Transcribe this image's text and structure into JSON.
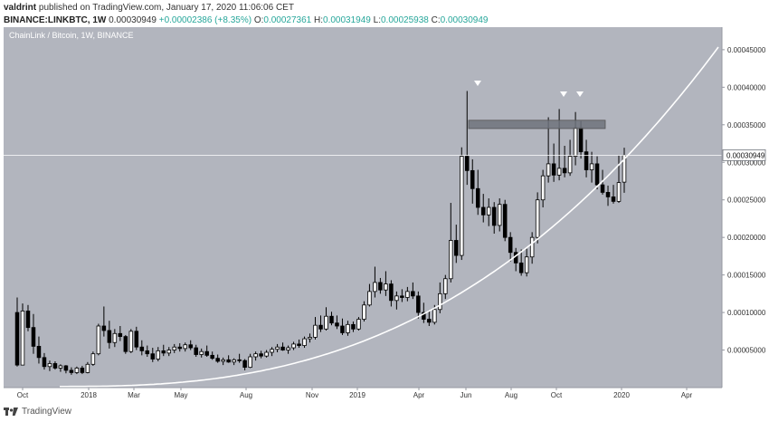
{
  "header": {
    "author": "valdrint",
    "published": "published on TradingView.com, January 17, 2020 11:06:06 CET",
    "symbol": "BINANCE:LINKBTC, 1W",
    "price": "0.00030949",
    "change": "+0.00002386 (+8.35%)",
    "o_label": "O:",
    "o": "0.00027361",
    "h_label": "H:",
    "h": "0.00031949",
    "l_label": "L:",
    "l": "0.00025938",
    "c_label": "C:",
    "c": "0.00030949"
  },
  "footer": {
    "brand": "TradingView"
  },
  "colors": {
    "plot_bg": "#b2b5be",
    "candle_up": "#ffffff",
    "candle_down": "#000000",
    "curve": "#ffffff",
    "resistance_box": "#6f737c",
    "price_line": "#ffffff"
  },
  "chart_data": {
    "type": "candlestick",
    "title": "ChainLink / Bitcoin, 1W, BINANCE",
    "x_ticks": [
      "Oct",
      "2018",
      "Mar",
      "May",
      "Aug",
      "Nov",
      "2019",
      "Apr",
      "Jun",
      "Aug",
      "Oct",
      "2020",
      "Apr"
    ],
    "y_ticks": [
      "0.00005000",
      "0.00010000",
      "0.00015000",
      "0.00020000",
      "0.00025000",
      "0.00030000",
      "0.00035000",
      "0.00040000",
      "0.00045000"
    ],
    "ylim": [
      0.0,
      0.00048
    ],
    "current_price": "0.00030949",
    "resistance_zone": [
      0.000345,
      0.000356
    ],
    "peak_markers": 3,
    "support_curve": "parabolic",
    "candles": [
      {
        "o": 0.0001,
        "h": 0.00012,
        "l": 2.8e-05,
        "c": 3e-05
      },
      {
        "o": 3e-05,
        "h": 0.000112,
        "l": 3e-05,
        "c": 0.000102
      },
      {
        "o": 0.000102,
        "h": 0.00011,
        "l": 7.5e-05,
        "c": 8e-05
      },
      {
        "o": 8e-05,
        "h": 9.8e-05,
        "l": 4.5e-05,
        "c": 5.5e-05
      },
      {
        "o": 5.5e-05,
        "h": 6.8e-05,
        "l": 3.2e-05,
        "c": 4e-05
      },
      {
        "o": 4e-05,
        "h": 4.6e-05,
        "l": 2.4e-05,
        "c": 2.8e-05
      },
      {
        "o": 2.8e-05,
        "h": 3.6e-05,
        "l": 2.2e-05,
        "c": 3.2e-05
      },
      {
        "o": 3.2e-05,
        "h": 3.5e-05,
        "l": 2.4e-05,
        "c": 2.6e-05
      },
      {
        "o": 2.6e-05,
        "h": 3.1e-05,
        "l": 2.1e-05,
        "c": 2.9e-05
      },
      {
        "o": 2.9e-05,
        "h": 3e-05,
        "l": 1.9e-05,
        "c": 2.3e-05
      },
      {
        "o": 2.3e-05,
        "h": 2.7e-05,
        "l": 1.7e-05,
        "c": 2e-05
      },
      {
        "o": 2e-05,
        "h": 2.8e-05,
        "l": 1.8e-05,
        "c": 2.6e-05
      },
      {
        "o": 2.6e-05,
        "h": 2.9e-05,
        "l": 1.8e-05,
        "c": 2e-05
      },
      {
        "o": 2e-05,
        "h": 3.4e-05,
        "l": 1.9e-05,
        "c": 3.1e-05
      },
      {
        "o": 3.1e-05,
        "h": 4.8e-05,
        "l": 2.9e-05,
        "c": 4.5e-05
      },
      {
        "o": 4.5e-05,
        "h": 8.5e-05,
        "l": 4.3e-05,
        "c": 8.2e-05
      },
      {
        "o": 8.2e-05,
        "h": 0.000108,
        "l": 6.8e-05,
        "c": 7.6e-05
      },
      {
        "o": 7.6e-05,
        "h": 8.9e-05,
        "l": 5.2e-05,
        "c": 6e-05
      },
      {
        "o": 6e-05,
        "h": 7.8e-05,
        "l": 5.4e-05,
        "c": 7.2e-05
      },
      {
        "o": 7.2e-05,
        "h": 8.2e-05,
        "l": 6.2e-05,
        "c": 6.8e-05
      },
      {
        "o": 6.8e-05,
        "h": 7e-05,
        "l": 4.5e-05,
        "c": 4.8e-05
      },
      {
        "o": 4.8e-05,
        "h": 7.8e-05,
        "l": 4.6e-05,
        "c": 7.5e-05
      },
      {
        "o": 7.5e-05,
        "h": 8.1e-05,
        "l": 5e-05,
        "c": 5.4e-05
      },
      {
        "o": 5.4e-05,
        "h": 6.3e-05,
        "l": 4.3e-05,
        "c": 4.9e-05
      },
      {
        "o": 4.9e-05,
        "h": 5.6e-05,
        "l": 4.1e-05,
        "c": 4.5e-05
      },
      {
        "o": 4.5e-05,
        "h": 5.3e-05,
        "l": 3.4e-05,
        "c": 3.8e-05
      },
      {
        "o": 3.8e-05,
        "h": 5.4e-05,
        "l": 3.5e-05,
        "c": 4.9e-05
      },
      {
        "o": 4.9e-05,
        "h": 5.7e-05,
        "l": 4.2e-05,
        "c": 4.6e-05
      },
      {
        "o": 4.6e-05,
        "h": 5.4e-05,
        "l": 4.2e-05,
        "c": 5e-05
      },
      {
        "o": 5e-05,
        "h": 5.8e-05,
        "l": 4.6e-05,
        "c": 5.4e-05
      },
      {
        "o": 5.4e-05,
        "h": 5.9e-05,
        "l": 4.8e-05,
        "c": 5.2e-05
      },
      {
        "o": 5.2e-05,
        "h": 6e-05,
        "l": 4.8e-05,
        "c": 5.7e-05
      },
      {
        "o": 5.7e-05,
        "h": 6.3e-05,
        "l": 5e-05,
        "c": 5.3e-05
      },
      {
        "o": 5.3e-05,
        "h": 5.7e-05,
        "l": 4.1e-05,
        "c": 4.4e-05
      },
      {
        "o": 4.4e-05,
        "h": 5.2e-05,
        "l": 4e-05,
        "c": 4.8e-05
      },
      {
        "o": 4.8e-05,
        "h": 5.6e-05,
        "l": 4.1e-05,
        "c": 4.3e-05
      },
      {
        "o": 4.3e-05,
        "h": 4.8e-05,
        "l": 3.7e-05,
        "c": 3.9e-05
      },
      {
        "o": 3.9e-05,
        "h": 4.4e-05,
        "l": 3.3e-05,
        "c": 3.5e-05
      },
      {
        "o": 3.5e-05,
        "h": 4e-05,
        "l": 3e-05,
        "c": 3.7e-05
      },
      {
        "o": 3.7e-05,
        "h": 4.3e-05,
        "l": 3.3e-05,
        "c": 3.4e-05
      },
      {
        "o": 3.4e-05,
        "h": 3.9e-05,
        "l": 3e-05,
        "c": 3.7e-05
      },
      {
        "o": 3.7e-05,
        "h": 4.5e-05,
        "l": 3.3e-05,
        "c": 3.6e-05
      },
      {
        "o": 3.6e-05,
        "h": 3.8e-05,
        "l": 2.3e-05,
        "c": 2.7e-05
      },
      {
        "o": 2.7e-05,
        "h": 4.5e-05,
        "l": 2.6e-05,
        "c": 4.1e-05
      },
      {
        "o": 4.1e-05,
        "h": 4.8e-05,
        "l": 3.6e-05,
        "c": 4.5e-05
      },
      {
        "o": 4.5e-05,
        "h": 4.9e-05,
        "l": 3.9e-05,
        "c": 4.2e-05
      },
      {
        "o": 4.2e-05,
        "h": 5e-05,
        "l": 4e-05,
        "c": 4.7e-05
      },
      {
        "o": 4.7e-05,
        "h": 5.4e-05,
        "l": 4.2e-05,
        "c": 5.1e-05
      },
      {
        "o": 5.1e-05,
        "h": 5.8e-05,
        "l": 4.7e-05,
        "c": 5.4e-05
      },
      {
        "o": 5.4e-05,
        "h": 6e-05,
        "l": 4.9e-05,
        "c": 5e-05
      },
      {
        "o": 5e-05,
        "h": 5.6e-05,
        "l": 4.5e-05,
        "c": 5.3e-05
      },
      {
        "o": 5.3e-05,
        "h": 6.1e-05,
        "l": 5e-05,
        "c": 5.8e-05
      },
      {
        "o": 5.8e-05,
        "h": 6.4e-05,
        "l": 5.3e-05,
        "c": 5.6e-05
      },
      {
        "o": 5.6e-05,
        "h": 6.8e-05,
        "l": 5.3e-05,
        "c": 6.5e-05
      },
      {
        "o": 6.5e-05,
        "h": 7.2e-05,
        "l": 6e-05,
        "c": 6.7e-05
      },
      {
        "o": 6.7e-05,
        "h": 9.4e-05,
        "l": 6.4e-05,
        "c": 8.3e-05
      },
      {
        "o": 8.3e-05,
        "h": 9.6e-05,
        "l": 7.4e-05,
        "c": 7.8e-05
      },
      {
        "o": 7.8e-05,
        "h": 0.000107,
        "l": 7.6e-05,
        "c": 9.5e-05
      },
      {
        "o": 9.5e-05,
        "h": 0.000101,
        "l": 8.3e-05,
        "c": 8.6e-05
      },
      {
        "o": 8.6e-05,
        "h": 9.6e-05,
        "l": 7.8e-05,
        "c": 8.2e-05
      },
      {
        "o": 8.2e-05,
        "h": 9.2e-05,
        "l": 7e-05,
        "c": 7.3e-05
      },
      {
        "o": 7.3e-05,
        "h": 8.9e-05,
        "l": 6.9e-05,
        "c": 8.4e-05
      },
      {
        "o": 8.4e-05,
        "h": 8.8e-05,
        "l": 7.4e-05,
        "c": 7.8e-05
      },
      {
        "o": 7.8e-05,
        "h": 9.4e-05,
        "l": 7.6e-05,
        "c": 9.1e-05
      },
      {
        "o": 9.1e-05,
        "h": 0.000115,
        "l": 8.8e-05,
        "c": 0.00011
      },
      {
        "o": 0.00011,
        "h": 0.000138,
        "l": 0.000108,
        "c": 0.000128
      },
      {
        "o": 0.000128,
        "h": 0.000161,
        "l": 0.00012,
        "c": 0.00014
      },
      {
        "o": 0.00014,
        "h": 0.000146,
        "l": 0.000125,
        "c": 0.00013
      },
      {
        "o": 0.00013,
        "h": 0.000155,
        "l": 0.000122,
        "c": 0.000138
      },
      {
        "o": 0.000138,
        "h": 0.000143,
        "l": 0.000108,
        "c": 0.000116
      },
      {
        "o": 0.000116,
        "h": 0.000128,
        "l": 0.000104,
        "c": 0.000122
      },
      {
        "o": 0.000122,
        "h": 0.000131,
        "l": 0.000114,
        "c": 0.00012
      },
      {
        "o": 0.00012,
        "h": 0.000134,
        "l": 0.000115,
        "c": 0.000128
      },
      {
        "o": 0.000128,
        "h": 0.00014,
        "l": 0.000118,
        "c": 0.000122
      },
      {
        "o": 0.000122,
        "h": 0.000128,
        "l": 9.2e-05,
        "c": 0.0001
      },
      {
        "o": 0.0001,
        "h": 0.000113,
        "l": 8.6e-05,
        "c": 9.1e-05
      },
      {
        "o": 9.1e-05,
        "h": 0.000103,
        "l": 8.2e-05,
        "c": 8.7e-05
      },
      {
        "o": 8.7e-05,
        "h": 0.00011,
        "l": 8.4e-05,
        "c": 0.000104
      },
      {
        "o": 0.000104,
        "h": 0.00014,
        "l": 9.9e-05,
        "c": 0.000125
      },
      {
        "o": 0.000125,
        "h": 0.00015,
        "l": 0.000118,
        "c": 0.000145
      },
      {
        "o": 0.000145,
        "h": 0.000246,
        "l": 0.00014,
        "c": 0.000196
      },
      {
        "o": 0.000196,
        "h": 0.000217,
        "l": 0.000166,
        "c": 0.000176
      },
      {
        "o": 0.000176,
        "h": 0.00032,
        "l": 0.00017,
        "c": 0.000308
      },
      {
        "o": 0.000308,
        "h": 0.000395,
        "l": 0.00027,
        "c": 0.000289
      },
      {
        "o": 0.000289,
        "h": 0.000304,
        "l": 0.000245,
        "c": 0.000265
      },
      {
        "o": 0.000265,
        "h": 0.00029,
        "l": 0.00023,
        "c": 0.00024
      },
      {
        "o": 0.00024,
        "h": 0.000258,
        "l": 0.00022,
        "c": 0.00023
      },
      {
        "o": 0.00023,
        "h": 0.000252,
        "l": 0.000215,
        "c": 0.00024
      },
      {
        "o": 0.00024,
        "h": 0.000247,
        "l": 0.000205,
        "c": 0.000216
      },
      {
        "o": 0.000216,
        "h": 0.000252,
        "l": 0.000208,
        "c": 0.000244
      },
      {
        "o": 0.000244,
        "h": 0.00025,
        "l": 0.000195,
        "c": 0.0002
      },
      {
        "o": 0.0002,
        "h": 0.000207,
        "l": 0.000168,
        "c": 0.00018
      },
      {
        "o": 0.00018,
        "h": 0.000186,
        "l": 0.000155,
        "c": 0.000166
      },
      {
        "o": 0.000166,
        "h": 0.000184,
        "l": 0.000149,
        "c": 0.000153
      },
      {
        "o": 0.000153,
        "h": 0.000185,
        "l": 0.000148,
        "c": 0.000174
      },
      {
        "o": 0.000174,
        "h": 0.000207,
        "l": 0.000165,
        "c": 0.0002
      },
      {
        "o": 0.0002,
        "h": 0.00026,
        "l": 0.000192,
        "c": 0.00025
      },
      {
        "o": 0.00025,
        "h": 0.00029,
        "l": 0.00024,
        "c": 0.000282
      },
      {
        "o": 0.000282,
        "h": 0.00036,
        "l": 0.000273,
        "c": 0.000298
      },
      {
        "o": 0.000298,
        "h": 0.000325,
        "l": 0.000274,
        "c": 0.000283
      },
      {
        "o": 0.000283,
        "h": 0.000371,
        "l": 0.000276,
        "c": 0.000292
      },
      {
        "o": 0.000292,
        "h": 0.000322,
        "l": 0.00028,
        "c": 0.000286
      },
      {
        "o": 0.000286,
        "h": 0.00033,
        "l": 0.000282,
        "c": 0.000308
      },
      {
        "o": 0.000308,
        "h": 0.000367,
        "l": 0.000296,
        "c": 0.000346
      },
      {
        "o": 0.000346,
        "h": 0.000355,
        "l": 0.000305,
        "c": 0.000314
      },
      {
        "o": 0.000314,
        "h": 0.00033,
        "l": 0.00028,
        "c": 0.00029
      },
      {
        "o": 0.00029,
        "h": 0.000314,
        "l": 0.000273,
        "c": 0.000298
      },
      {
        "o": 0.000298,
        "h": 0.000308,
        "l": 0.000264,
        "c": 0.00027
      },
      {
        "o": 0.00027,
        "h": 0.00029,
        "l": 0.000257,
        "c": 0.00026
      },
      {
        "o": 0.00026,
        "h": 0.000269,
        "l": 0.000242,
        "c": 0.000254
      },
      {
        "o": 0.000254,
        "h": 0.00027,
        "l": 0.000245,
        "c": 0.000248
      },
      {
        "o": 0.000248,
        "h": 0.000309,
        "l": 0.000246,
        "c": 0.000273
      },
      {
        "o": 0.00027361,
        "h": 0.00031949,
        "l": 0.00025938,
        "c": 0.00030949
      }
    ]
  }
}
